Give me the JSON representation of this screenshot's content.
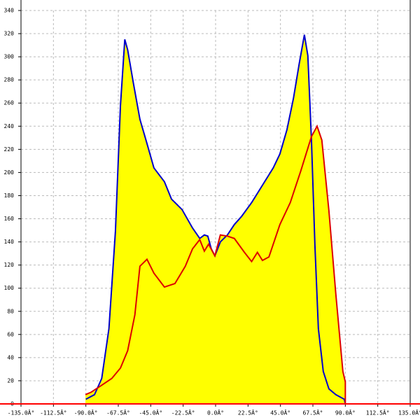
{
  "chart_data": {
    "type": "area-line",
    "grid": true,
    "fill_color": "#ffff00",
    "axis_color": "#ff0000",
    "xlim": [
      -135,
      135
    ],
    "ylim": [
      0,
      340
    ],
    "xticks": [
      {
        "value": -135,
        "label": "-135.0Â°"
      },
      {
        "value": -112.5,
        "label": "-112.5Â°"
      },
      {
        "value": -90,
        "label": "-90.0Â°"
      },
      {
        "value": -67.5,
        "label": "-67.5Â°"
      },
      {
        "value": -45,
        "label": "-45.0Â°"
      },
      {
        "value": -22.5,
        "label": "-22.5Â°"
      },
      {
        "value": 0,
        "label": "0.0Â°"
      },
      {
        "value": 22.5,
        "label": "22.5Â°"
      },
      {
        "value": 45,
        "label": "45.0Â°"
      },
      {
        "value": 67.5,
        "label": "67.5Â°"
      },
      {
        "value": 90,
        "label": "90.0Â°"
      },
      {
        "value": 112.5,
        "label": "112.5Â°"
      },
      {
        "value": 135,
        "label": "135.0Â°"
      }
    ],
    "yticks": [
      0,
      20,
      40,
      60,
      80,
      100,
      120,
      140,
      160,
      180,
      200,
      220,
      240,
      260,
      280,
      300,
      320,
      340
    ],
    "series": [
      {
        "color": "#0000cc",
        "x": [
          -90,
          -84,
          -79,
          -74,
          -69.5,
          -66,
          -63,
          -61,
          -57,
          -52.5,
          -47.6,
          -42.8,
          -35.5,
          -30.6,
          -23.3,
          -16,
          -11,
          -7.8,
          -5.4,
          -3,
          -0.5,
          3.3,
          8.2,
          13,
          18,
          25,
          32.5,
          40,
          44.6,
          49.5,
          54,
          58,
          61.6,
          64,
          66.5,
          68.9,
          71.3,
          74.7,
          78.6,
          83.4,
          89.3,
          90
        ],
        "values": [
          4,
          8,
          22,
          65,
          149,
          258,
          315,
          306,
          277,
          246,
          225,
          204,
          192,
          177,
          168,
          152,
          143,
          146,
          145,
          134,
          128,
          140,
          146,
          155,
          162,
          174,
          189,
          204,
          216,
          237,
          264,
          294,
          319,
          301,
          228,
          137,
          65,
          28,
          13,
          8,
          4,
          0
        ]
      },
      {
        "color": "#dd0000",
        "x": [
          -90.3,
          -86.5,
          -79.2,
          -72,
          -66,
          -61,
          -56,
          -52.5,
          -50,
          -47.6,
          -42.8,
          -35.5,
          -28.2,
          -21,
          -16,
          -11,
          -7.8,
          -4.9,
          -0.5,
          3.3,
          8.2,
          13,
          20,
          25,
          29,
          32.5,
          37,
          44.6,
          51.8,
          59,
          66.5,
          70.4,
          73.7,
          78.6,
          83.4,
          88.3,
          90,
          90
        ],
        "values": [
          8,
          10,
          16,
          22,
          31,
          46,
          77,
          119,
          122,
          125,
          113,
          101,
          104,
          119,
          134,
          142,
          132,
          138,
          128,
          146,
          145,
          143,
          131,
          123,
          131,
          124,
          127,
          155,
          174,
          201,
          231,
          240,
          228,
          167,
          95,
          28,
          19,
          0
        ]
      }
    ]
  }
}
